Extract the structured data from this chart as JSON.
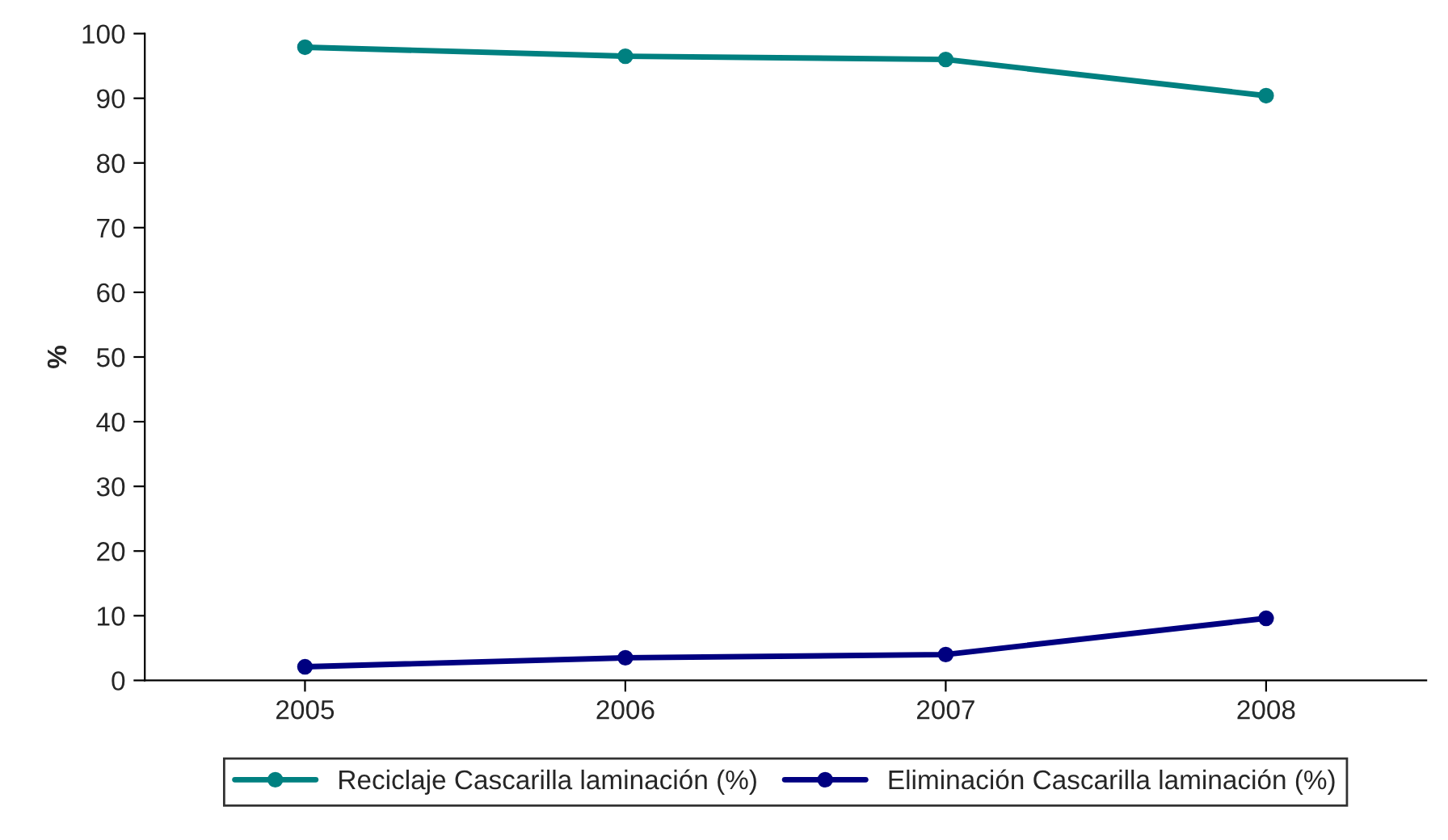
{
  "chart_data": {
    "type": "line",
    "ylabel": "%",
    "categories": [
      "2005",
      "2006",
      "2007",
      "2008"
    ],
    "series": [
      {
        "name": "Reciclaje Cascarilla laminación (%)",
        "color": "#008080",
        "values": [
          97.9,
          96.5,
          96.0,
          90.4
        ]
      },
      {
        "name": "Eliminación Cascarilla laminación (%)",
        "color": "#000080",
        "values": [
          2.1,
          3.5,
          4.0,
          9.6
        ]
      }
    ],
    "ylim": [
      0,
      100
    ],
    "yticks": [
      0,
      10,
      20,
      30,
      40,
      50,
      60,
      70,
      80,
      90,
      100
    ],
    "grid": false,
    "legend": "bottom",
    "marker": "circle",
    "line_style": "solid"
  }
}
